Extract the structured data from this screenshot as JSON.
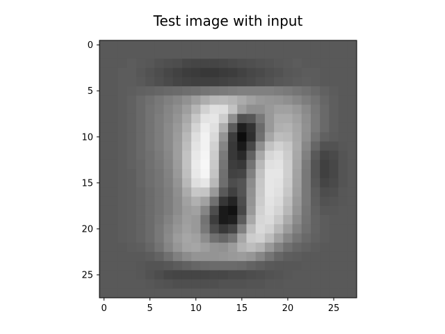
{
  "chart_data": {
    "type": "heatmap",
    "title": "Test image with input",
    "xlabel": "",
    "ylabel": "",
    "colormap": "gray",
    "grid": false,
    "rows": 28,
    "cols": 28,
    "xlim": [
      -0.5,
      27.5
    ],
    "ylim": [
      27.5,
      -0.5
    ],
    "x_ticks": [
      0,
      5,
      10,
      15,
      20,
      25
    ],
    "y_ticks": [
      0,
      5,
      10,
      15,
      20,
      25
    ],
    "x_tick_labels": [
      "0",
      "5",
      "10",
      "15",
      "20",
      "25"
    ],
    "y_tick_labels": [
      "0",
      "5",
      "10",
      "15",
      "20",
      "25"
    ],
    "values": [
      [
        0.35,
        0.35,
        0.35,
        0.35,
        0.35,
        0.35,
        0.35,
        0.35,
        0.35,
        0.35,
        0.35,
        0.35,
        0.35,
        0.35,
        0.35,
        0.35,
        0.35,
        0.35,
        0.35,
        0.35,
        0.35,
        0.35,
        0.35,
        0.35,
        0.35,
        0.35,
        0.35,
        0.35
      ],
      [
        0.35,
        0.35,
        0.35,
        0.35,
        0.35,
        0.35,
        0.35,
        0.35,
        0.35,
        0.35,
        0.35,
        0.35,
        0.35,
        0.35,
        0.35,
        0.35,
        0.35,
        0.35,
        0.35,
        0.35,
        0.35,
        0.35,
        0.35,
        0.35,
        0.35,
        0.35,
        0.35,
        0.35
      ],
      [
        0.35,
        0.35,
        0.35,
        0.36,
        0.35,
        0.34,
        0.32,
        0.31,
        0.3,
        0.28,
        0.27,
        0.27,
        0.27,
        0.28,
        0.29,
        0.3,
        0.31,
        0.32,
        0.33,
        0.34,
        0.35,
        0.36,
        0.35,
        0.35,
        0.35,
        0.35,
        0.35,
        0.35
      ],
      [
        0.35,
        0.35,
        0.36,
        0.36,
        0.34,
        0.32,
        0.3,
        0.28,
        0.26,
        0.24,
        0.23,
        0.22,
        0.22,
        0.23,
        0.24,
        0.26,
        0.28,
        0.29,
        0.31,
        0.32,
        0.34,
        0.35,
        0.36,
        0.36,
        0.35,
        0.35,
        0.35,
        0.35
      ],
      [
        0.35,
        0.35,
        0.36,
        0.36,
        0.35,
        0.33,
        0.31,
        0.29,
        0.27,
        0.26,
        0.25,
        0.25,
        0.25,
        0.26,
        0.27,
        0.28,
        0.29,
        0.31,
        0.32,
        0.34,
        0.35,
        0.36,
        0.37,
        0.36,
        0.35,
        0.35,
        0.35,
        0.35
      ],
      [
        0.35,
        0.35,
        0.36,
        0.37,
        0.38,
        0.39,
        0.4,
        0.41,
        0.42,
        0.43,
        0.44,
        0.46,
        0.47,
        0.48,
        0.49,
        0.5,
        0.5,
        0.5,
        0.5,
        0.49,
        0.48,
        0.46,
        0.44,
        0.41,
        0.38,
        0.36,
        0.35,
        0.35
      ],
      [
        0.35,
        0.35,
        0.36,
        0.38,
        0.41,
        0.44,
        0.47,
        0.5,
        0.53,
        0.57,
        0.62,
        0.68,
        0.72,
        0.73,
        0.71,
        0.67,
        0.63,
        0.6,
        0.59,
        0.58,
        0.56,
        0.53,
        0.49,
        0.45,
        0.4,
        0.37,
        0.35,
        0.35
      ],
      [
        0.35,
        0.35,
        0.36,
        0.38,
        0.41,
        0.45,
        0.48,
        0.52,
        0.56,
        0.62,
        0.71,
        0.82,
        0.88,
        0.87,
        0.76,
        0.62,
        0.56,
        0.56,
        0.6,
        0.63,
        0.63,
        0.6,
        0.54,
        0.47,
        0.41,
        0.37,
        0.35,
        0.35
      ],
      [
        0.35,
        0.35,
        0.36,
        0.38,
        0.41,
        0.45,
        0.49,
        0.53,
        0.58,
        0.66,
        0.78,
        0.89,
        0.9,
        0.8,
        0.56,
        0.32,
        0.34,
        0.47,
        0.6,
        0.67,
        0.67,
        0.63,
        0.56,
        0.48,
        0.41,
        0.37,
        0.35,
        0.35
      ],
      [
        0.35,
        0.35,
        0.36,
        0.38,
        0.41,
        0.45,
        0.49,
        0.54,
        0.6,
        0.69,
        0.83,
        0.93,
        0.88,
        0.68,
        0.36,
        0.12,
        0.2,
        0.42,
        0.6,
        0.69,
        0.7,
        0.65,
        0.57,
        0.48,
        0.41,
        0.37,
        0.35,
        0.35
      ],
      [
        0.35,
        0.35,
        0.36,
        0.38,
        0.41,
        0.45,
        0.49,
        0.54,
        0.61,
        0.72,
        0.87,
        0.95,
        0.85,
        0.58,
        0.24,
        0.05,
        0.18,
        0.44,
        0.65,
        0.74,
        0.73,
        0.66,
        0.56,
        0.45,
        0.38,
        0.36,
        0.35,
        0.35
      ],
      [
        0.35,
        0.35,
        0.36,
        0.38,
        0.41,
        0.45,
        0.49,
        0.54,
        0.62,
        0.74,
        0.89,
        0.95,
        0.82,
        0.52,
        0.22,
        0.1,
        0.28,
        0.56,
        0.76,
        0.82,
        0.78,
        0.67,
        0.53,
        0.4,
        0.32,
        0.32,
        0.34,
        0.35
      ],
      [
        0.35,
        0.35,
        0.36,
        0.38,
        0.41,
        0.44,
        0.48,
        0.53,
        0.62,
        0.76,
        0.91,
        0.96,
        0.8,
        0.48,
        0.22,
        0.16,
        0.38,
        0.66,
        0.84,
        0.87,
        0.8,
        0.66,
        0.5,
        0.35,
        0.27,
        0.29,
        0.33,
        0.35
      ],
      [
        0.35,
        0.35,
        0.36,
        0.38,
        0.4,
        0.44,
        0.47,
        0.52,
        0.61,
        0.76,
        0.92,
        0.97,
        0.79,
        0.46,
        0.24,
        0.22,
        0.45,
        0.72,
        0.88,
        0.89,
        0.81,
        0.65,
        0.48,
        0.33,
        0.25,
        0.28,
        0.33,
        0.35
      ],
      [
        0.35,
        0.35,
        0.36,
        0.37,
        0.4,
        0.43,
        0.46,
        0.51,
        0.6,
        0.75,
        0.91,
        0.96,
        0.77,
        0.44,
        0.26,
        0.27,
        0.5,
        0.76,
        0.9,
        0.9,
        0.81,
        0.64,
        0.47,
        0.33,
        0.25,
        0.28,
        0.33,
        0.35
      ],
      [
        0.35,
        0.35,
        0.36,
        0.37,
        0.4,
        0.43,
        0.46,
        0.5,
        0.58,
        0.72,
        0.87,
        0.9,
        0.72,
        0.43,
        0.3,
        0.33,
        0.55,
        0.78,
        0.9,
        0.89,
        0.8,
        0.63,
        0.47,
        0.34,
        0.27,
        0.29,
        0.33,
        0.35
      ],
      [
        0.35,
        0.35,
        0.36,
        0.37,
        0.39,
        0.42,
        0.45,
        0.49,
        0.56,
        0.67,
        0.78,
        0.77,
        0.6,
        0.35,
        0.25,
        0.33,
        0.57,
        0.79,
        0.9,
        0.88,
        0.78,
        0.62,
        0.47,
        0.36,
        0.3,
        0.31,
        0.34,
        0.35
      ],
      [
        0.35,
        0.35,
        0.36,
        0.37,
        0.39,
        0.42,
        0.45,
        0.49,
        0.55,
        0.63,
        0.69,
        0.63,
        0.44,
        0.21,
        0.14,
        0.3,
        0.58,
        0.8,
        0.89,
        0.86,
        0.75,
        0.6,
        0.47,
        0.37,
        0.32,
        0.33,
        0.34,
        0.35
      ],
      [
        0.35,
        0.35,
        0.36,
        0.37,
        0.39,
        0.42,
        0.45,
        0.49,
        0.55,
        0.61,
        0.63,
        0.52,
        0.3,
        0.1,
        0.07,
        0.28,
        0.6,
        0.82,
        0.88,
        0.83,
        0.72,
        0.58,
        0.46,
        0.38,
        0.34,
        0.34,
        0.35,
        0.35
      ],
      [
        0.35,
        0.35,
        0.36,
        0.37,
        0.39,
        0.42,
        0.46,
        0.51,
        0.57,
        0.62,
        0.6,
        0.45,
        0.24,
        0.1,
        0.12,
        0.36,
        0.66,
        0.84,
        0.86,
        0.79,
        0.67,
        0.55,
        0.45,
        0.39,
        0.36,
        0.35,
        0.35,
        0.35
      ],
      [
        0.35,
        0.35,
        0.36,
        0.37,
        0.39,
        0.42,
        0.47,
        0.53,
        0.59,
        0.63,
        0.6,
        0.47,
        0.3,
        0.22,
        0.27,
        0.5,
        0.74,
        0.85,
        0.82,
        0.72,
        0.61,
        0.51,
        0.44,
        0.39,
        0.36,
        0.35,
        0.35,
        0.35
      ],
      [
        0.35,
        0.35,
        0.36,
        0.37,
        0.39,
        0.42,
        0.47,
        0.54,
        0.61,
        0.65,
        0.63,
        0.55,
        0.44,
        0.4,
        0.46,
        0.65,
        0.8,
        0.82,
        0.74,
        0.63,
        0.53,
        0.46,
        0.41,
        0.38,
        0.36,
        0.35,
        0.35,
        0.35
      ],
      [
        0.35,
        0.35,
        0.35,
        0.36,
        0.37,
        0.4,
        0.45,
        0.52,
        0.59,
        0.64,
        0.65,
        0.62,
        0.58,
        0.57,
        0.61,
        0.7,
        0.74,
        0.7,
        0.6,
        0.51,
        0.44,
        0.4,
        0.38,
        0.36,
        0.35,
        0.35,
        0.35,
        0.35
      ],
      [
        0.35,
        0.35,
        0.35,
        0.35,
        0.35,
        0.36,
        0.39,
        0.44,
        0.5,
        0.55,
        0.58,
        0.58,
        0.58,
        0.59,
        0.6,
        0.61,
        0.59,
        0.53,
        0.46,
        0.4,
        0.37,
        0.36,
        0.35,
        0.35,
        0.35,
        0.35,
        0.35,
        0.35
      ],
      [
        0.35,
        0.35,
        0.35,
        0.35,
        0.34,
        0.33,
        0.33,
        0.34,
        0.36,
        0.38,
        0.4,
        0.41,
        0.42,
        0.42,
        0.42,
        0.41,
        0.39,
        0.37,
        0.35,
        0.34,
        0.34,
        0.34,
        0.35,
        0.35,
        0.35,
        0.35,
        0.35,
        0.35
      ],
      [
        0.35,
        0.35,
        0.35,
        0.35,
        0.34,
        0.32,
        0.3,
        0.28,
        0.27,
        0.27,
        0.27,
        0.27,
        0.28,
        0.28,
        0.29,
        0.29,
        0.3,
        0.31,
        0.32,
        0.33,
        0.34,
        0.35,
        0.35,
        0.35,
        0.35,
        0.35,
        0.35,
        0.35
      ],
      [
        0.35,
        0.35,
        0.35,
        0.35,
        0.35,
        0.34,
        0.33,
        0.32,
        0.31,
        0.31,
        0.31,
        0.31,
        0.31,
        0.32,
        0.32,
        0.32,
        0.33,
        0.33,
        0.34,
        0.34,
        0.35,
        0.35,
        0.35,
        0.35,
        0.35,
        0.35,
        0.35,
        0.35
      ],
      [
        0.35,
        0.35,
        0.35,
        0.35,
        0.35,
        0.35,
        0.35,
        0.35,
        0.35,
        0.35,
        0.35,
        0.35,
        0.35,
        0.35,
        0.35,
        0.35,
        0.35,
        0.35,
        0.35,
        0.35,
        0.35,
        0.35,
        0.35,
        0.35,
        0.35,
        0.35,
        0.35,
        0.35
      ]
    ]
  }
}
